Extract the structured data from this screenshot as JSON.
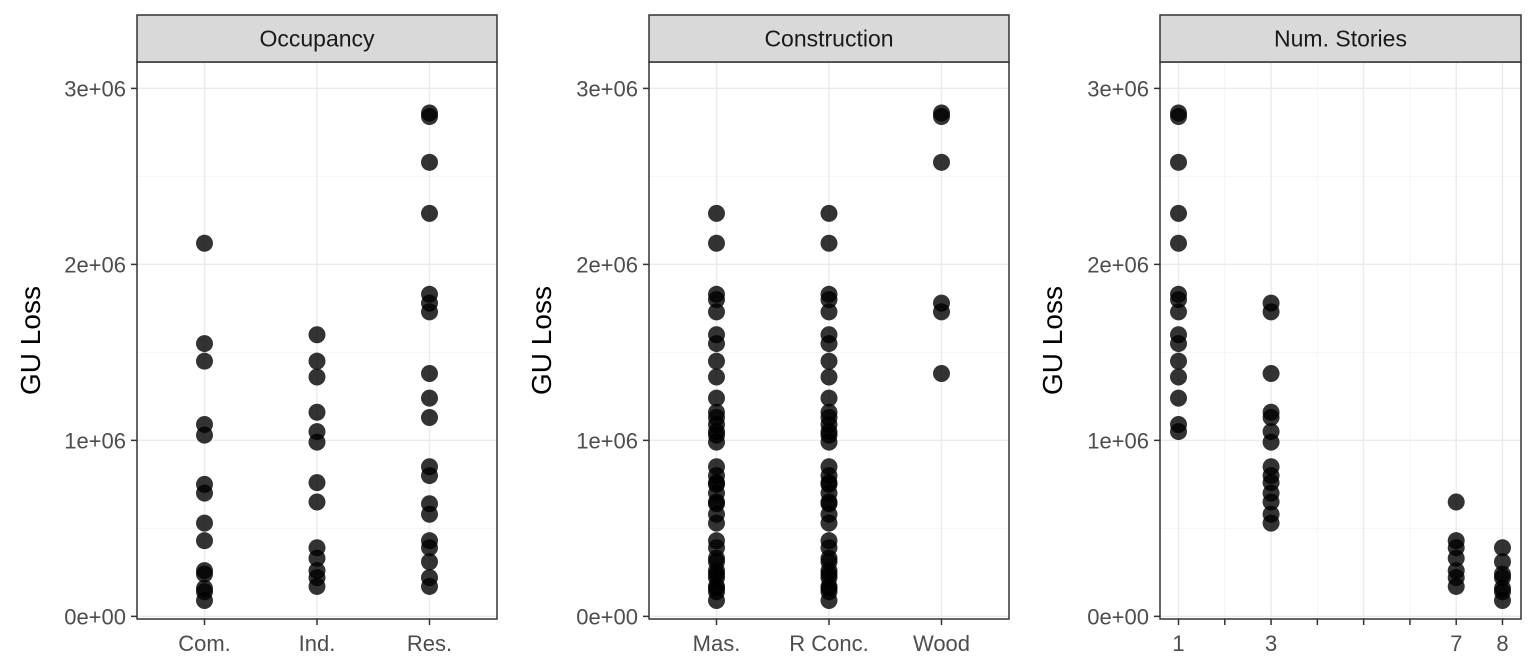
{
  "colors": {
    "point": "#000000",
    "strip_fill": "#d9d9d9",
    "panel_border": "#333333",
    "grid_major": "#ebebeb",
    "grid_minor": "#f5f5f5",
    "tick_text": "#4d4d4d"
  },
  "chart_data": [
    {
      "type": "scatter",
      "title": "Occupancy",
      "xlabel": "",
      "ylabel": "GU Loss",
      "x_type": "categorical",
      "categories": [
        "Com.",
        "Ind.",
        "Res."
      ],
      "ylim": [
        -15000,
        3150000
      ],
      "yticks": [
        0,
        1000000,
        2000000,
        3000000
      ],
      "ytick_labels": [
        "0e+00",
        "1e+06",
        "2e+06",
        "3e+06"
      ],
      "grid": true,
      "points": [
        {
          "x": "Com.",
          "y": [
            2120000,
            1550000,
            1450000,
            1090000,
            1030000,
            750000,
            700000,
            530000,
            430000,
            260000,
            240000,
            160000,
            140000,
            90000
          ]
        },
        {
          "x": "Ind.",
          "y": [
            1600000,
            1450000,
            1360000,
            1160000,
            1050000,
            990000,
            760000,
            650000,
            390000,
            330000,
            260000,
            220000,
            170000
          ]
        },
        {
          "x": "Res.",
          "y": [
            2860000,
            2840000,
            2580000,
            2290000,
            1830000,
            1780000,
            1730000,
            1380000,
            1240000,
            1130000,
            850000,
            800000,
            640000,
            580000,
            430000,
            390000,
            310000,
            220000,
            170000
          ]
        }
      ]
    },
    {
      "type": "scatter",
      "title": "Construction",
      "xlabel": "",
      "ylabel": "GU Loss",
      "x_type": "categorical",
      "categories": [
        "Mas.",
        "R Conc.",
        "Wood"
      ],
      "ylim": [
        -15000,
        3150000
      ],
      "yticks": [
        0,
        1000000,
        2000000,
        3000000
      ],
      "ytick_labels": [
        "0e+00",
        "1e+06",
        "2e+06",
        "3e+06"
      ],
      "grid": true,
      "points": [
        {
          "x": "Mas.",
          "y": [
            2290000,
            2120000,
            1830000,
            1800000,
            1730000,
            1600000,
            1550000,
            1450000,
            1360000,
            1240000,
            1160000,
            1130000,
            1090000,
            1050000,
            1030000,
            990000,
            850000,
            800000,
            760000,
            750000,
            700000,
            650000,
            640000,
            580000,
            530000,
            430000,
            390000,
            330000,
            310000,
            260000,
            240000,
            220000,
            170000,
            160000,
            140000,
            90000
          ]
        },
        {
          "x": "R Conc.",
          "y": [
            2290000,
            2120000,
            1830000,
            1800000,
            1730000,
            1600000,
            1550000,
            1450000,
            1360000,
            1240000,
            1160000,
            1130000,
            1090000,
            1050000,
            1030000,
            990000,
            850000,
            800000,
            760000,
            750000,
            700000,
            650000,
            640000,
            580000,
            530000,
            430000,
            390000,
            330000,
            310000,
            260000,
            240000,
            220000,
            170000,
            160000,
            140000,
            90000
          ]
        },
        {
          "x": "Wood",
          "y": [
            2860000,
            2840000,
            2580000,
            1780000,
            1730000,
            1380000
          ]
        }
      ]
    },
    {
      "type": "scatter",
      "title": "Num. Stories",
      "xlabel": "",
      "ylabel": "GU Loss",
      "x_type": "numeric",
      "xlim": [
        0.6,
        8.4
      ],
      "xticks": [
        1,
        3,
        7,
        8
      ],
      "xtick_labels": [
        "1",
        "3",
        "7",
        "8"
      ],
      "xgrid_major": [
        1,
        3,
        5,
        7,
        8
      ],
      "xgrid_minor": [
        2,
        4,
        6
      ],
      "ylim": [
        -15000,
        3150000
      ],
      "yticks": [
        0,
        1000000,
        2000000,
        3000000
      ],
      "ytick_labels": [
        "0e+00",
        "1e+06",
        "2e+06",
        "3e+06"
      ],
      "grid": true,
      "points": [
        {
          "x": 1,
          "y": [
            2860000,
            2840000,
            2580000,
            2290000,
            2120000,
            1830000,
            1800000,
            1730000,
            1600000,
            1550000,
            1450000,
            1360000,
            1240000,
            1090000,
            1050000
          ]
        },
        {
          "x": 3,
          "y": [
            1780000,
            1730000,
            1380000,
            1160000,
            1130000,
            1050000,
            990000,
            850000,
            800000,
            760000,
            700000,
            650000,
            580000,
            530000
          ]
        },
        {
          "x": 7,
          "y": [
            650000,
            430000,
            390000,
            330000,
            260000,
            220000,
            170000
          ]
        },
        {
          "x": 8,
          "y": [
            390000,
            310000,
            240000,
            220000,
            160000,
            140000,
            90000
          ]
        }
      ]
    }
  ]
}
